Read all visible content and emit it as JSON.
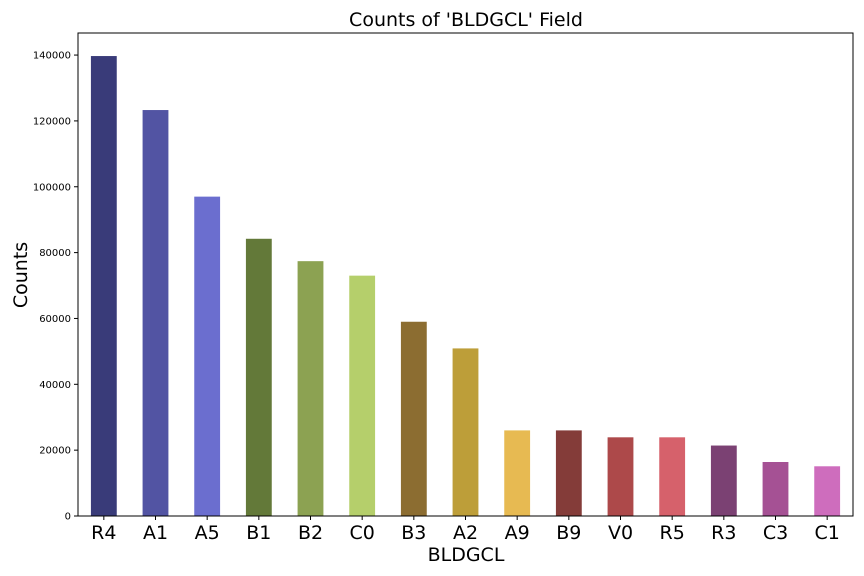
{
  "chart_data": {
    "type": "bar",
    "title": "Counts of 'BLDGCL' Field",
    "xlabel": "BLDGCL",
    "ylabel": "Counts",
    "categories": [
      "R4",
      "A1",
      "A5",
      "B1",
      "B2",
      "C0",
      "B3",
      "A2",
      "A9",
      "B9",
      "V0",
      "R5",
      "R3",
      "C3",
      "C1"
    ],
    "values": [
      139700,
      123300,
      97000,
      84200,
      77400,
      73000,
      59000,
      50900,
      26000,
      26000,
      23900,
      23900,
      21400,
      16400,
      15100
    ],
    "colors": [
      "#393b79",
      "#5254a3",
      "#6b6ecf",
      "#637939",
      "#8ca252",
      "#b5cf6b",
      "#8c6d31",
      "#bd9e39",
      "#e7ba52",
      "#843c39",
      "#ad494a",
      "#d6616b",
      "#7b4173",
      "#a55194",
      "#ce6dbd"
    ],
    "ylim": [
      0,
      146700
    ],
    "yticks": [
      0,
      20000,
      40000,
      60000,
      80000,
      100000,
      120000,
      140000
    ],
    "ytick_labels": [
      "0",
      "20000",
      "40000",
      "60000",
      "80000",
      "100000",
      "120000",
      "140000"
    ],
    "grid": false,
    "legend": "none"
  }
}
